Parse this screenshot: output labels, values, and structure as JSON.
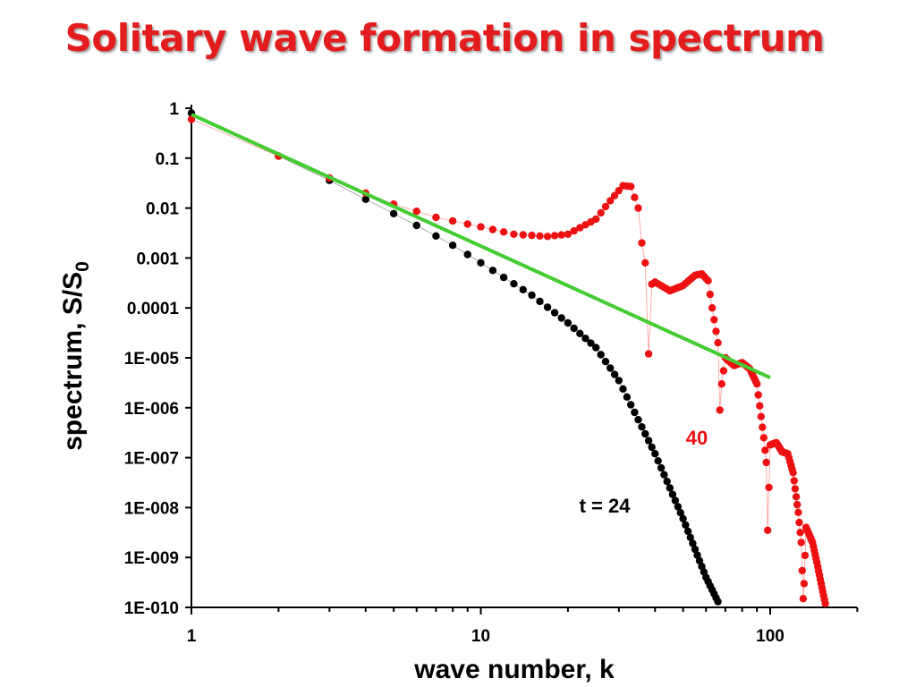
{
  "title": "Solitary wave formation in spectrum",
  "colors": {
    "title": "#e31d1d",
    "series_t24": "#000000",
    "series_t40": "#ee1111",
    "fit_line": "#44cc33",
    "axis": "#000000"
  },
  "chart_data": {
    "type": "scatter",
    "title": "Solitary wave formation in spectrum",
    "xlabel": "wave number, k",
    "ylabel": "spectrum, S/S0",
    "ylabel_main": "spectrum, S/S",
    "ylabel_sub": "0",
    "xscale": "log",
    "yscale": "log",
    "xlim": [
      1,
      200
    ],
    "ylim": [
      1e-10,
      1
    ],
    "x_ticks": [
      "1",
      "10",
      "100"
    ],
    "y_ticks": [
      "1",
      "0.1",
      "0.01",
      "0.001",
      "0.0001",
      "1E-005",
      "1E-006",
      "1E-007",
      "1E-008",
      "1E-009",
      "1E-010"
    ],
    "grid": false,
    "annotations": [
      {
        "text": "t = 24",
        "series": "t = 24"
      },
      {
        "text": "40",
        "series": "t = 40"
      }
    ],
    "series": [
      {
        "name": "t = 24",
        "marker": "dot",
        "anchors": [
          [
            1,
            0.8
          ],
          [
            2,
            0.11
          ],
          [
            3,
            0.036
          ],
          [
            4,
            0.015
          ],
          [
            6,
            0.0045
          ],
          [
            8,
            0.0018
          ],
          [
            10,
            0.0008
          ],
          [
            15,
            0.00018
          ],
          [
            20,
            5e-05
          ],
          [
            25,
            1.6e-05
          ],
          [
            30,
            3.5e-06
          ],
          [
            40,
            1.2e-07
          ],
          [
            50,
            6e-09
          ],
          [
            60,
            4e-10
          ],
          [
            66,
            1.3e-10
          ]
        ]
      },
      {
        "name": "t = 40",
        "marker": "dot",
        "anchors": [
          [
            1,
            0.6
          ],
          [
            2,
            0.11
          ],
          [
            3,
            0.04
          ],
          [
            4,
            0.02
          ],
          [
            5,
            0.012
          ],
          [
            7,
            0.0065
          ],
          [
            10,
            0.0042
          ],
          [
            13,
            0.003
          ],
          [
            17,
            0.0027
          ],
          [
            20,
            0.003
          ],
          [
            25,
            0.006
          ],
          [
            28,
            0.014
          ],
          [
            31,
            0.028
          ],
          [
            33,
            0.027
          ],
          [
            35,
            0.01
          ],
          [
            36,
            0.002
          ],
          [
            37,
            0.0008
          ],
          [
            38,
            1.2e-05
          ],
          [
            39,
            0.0003
          ],
          [
            40,
            0.00033
          ],
          [
            45,
            0.00022
          ],
          [
            50,
            0.00028
          ],
          [
            55,
            0.00045
          ],
          [
            58,
            0.00048
          ],
          [
            61,
            0.00035
          ],
          [
            63,
            0.0001
          ],
          [
            66,
            2e-05
          ],
          [
            67,
            9e-07
          ],
          [
            68,
            3e-06
          ],
          [
            70,
            1e-05
          ],
          [
            75,
            7e-06
          ],
          [
            80,
            8e-06
          ],
          [
            85,
            6e-06
          ],
          [
            90,
            3e-06
          ],
          [
            95,
            2.5e-07
          ],
          [
            97,
            8e-08
          ],
          [
            98,
            3.5e-09
          ],
          [
            100,
            1.8e-07
          ],
          [
            105,
            2e-07
          ],
          [
            110,
            1.3e-07
          ],
          [
            115,
            1.2e-07
          ],
          [
            120,
            5e-08
          ],
          [
            125,
            8e-09
          ],
          [
            128,
            2e-09
          ],
          [
            130,
            1.5e-10
          ],
          [
            131,
            3e-10
          ],
          [
            133,
            4e-09
          ],
          [
            136,
            3e-09
          ],
          [
            140,
            2e-09
          ],
          [
            145,
            8e-10
          ],
          [
            150,
            3e-10
          ],
          [
            155,
            1.2e-10
          ]
        ]
      },
      {
        "name": "power-law fit",
        "marker": "line",
        "points": [
          [
            1,
            0.75
          ],
          [
            100,
            4e-06
          ]
        ]
      }
    ]
  }
}
